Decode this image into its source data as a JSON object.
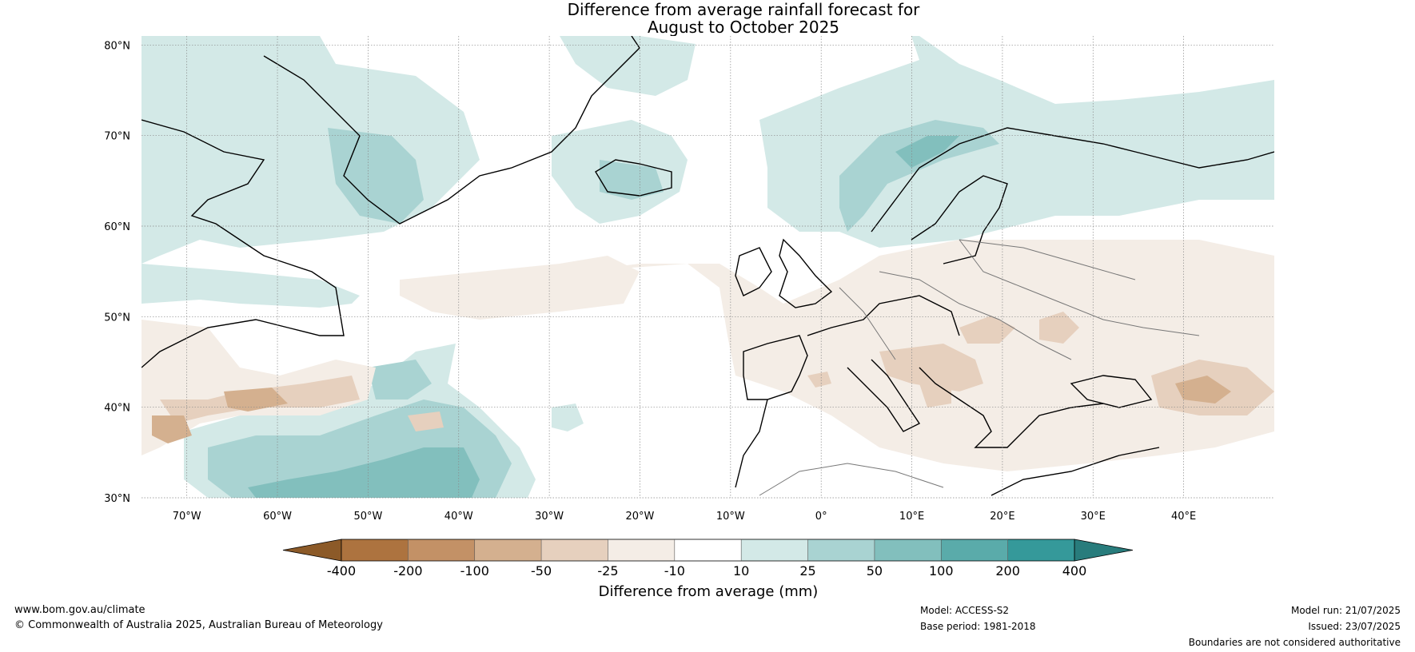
{
  "title": {
    "line1": "Difference from average rainfall forecast for",
    "line2": "August to October 2025"
  },
  "axes": {
    "latitudes": [
      {
        "value": 80,
        "label": "80°N"
      },
      {
        "value": 70,
        "label": "70°N"
      },
      {
        "value": 60,
        "label": "60°N"
      },
      {
        "value": 50,
        "label": "50°N"
      },
      {
        "value": 40,
        "label": "40°N"
      },
      {
        "value": 30,
        "label": "30°N"
      }
    ],
    "longitudes": [
      {
        "value": -70,
        "label": "70°W"
      },
      {
        "value": -60,
        "label": "60°W"
      },
      {
        "value": -50,
        "label": "50°W"
      },
      {
        "value": -40,
        "label": "40°W"
      },
      {
        "value": -30,
        "label": "30°W"
      },
      {
        "value": -20,
        "label": "20°W"
      },
      {
        "value": -10,
        "label": "10°W"
      },
      {
        "value": 0,
        "label": "0°"
      },
      {
        "value": 10,
        "label": "10°E"
      },
      {
        "value": 20,
        "label": "20°E"
      },
      {
        "value": 30,
        "label": "30°E"
      },
      {
        "value": 40,
        "label": "40°E"
      }
    ],
    "lon_range": [
      -75,
      50
    ],
    "lat_range": [
      30,
      81
    ]
  },
  "colorbar": {
    "label": "Difference from average (mm)",
    "ticks": [
      "-400",
      "-200",
      "-100",
      "-50",
      "-25",
      "-10",
      "10",
      "25",
      "50",
      "100",
      "200",
      "400"
    ],
    "colors": [
      "#8c5a28",
      "#ad733f",
      "#c39166",
      "#d4b08f",
      "#e6d0be",
      "#f4ede6",
      "#ffffff",
      "#d3e9e7",
      "#a9d3d2",
      "#82bfbd",
      "#5aabaa",
      "#35999a",
      "#287c7c"
    ]
  },
  "footer": {
    "website": "www.bom.gov.au/climate",
    "copyright": "© Commonwealth of Australia 2025, Australian Bureau of Meteorology",
    "model": "Model: ACCESS-S2",
    "base_period": "Base period: 1981-2018",
    "model_run": "Model run: 21/07/2025",
    "issued": "Issued: 23/07/2025",
    "disclaimer": "Boundaries are not considered authoritative"
  }
}
